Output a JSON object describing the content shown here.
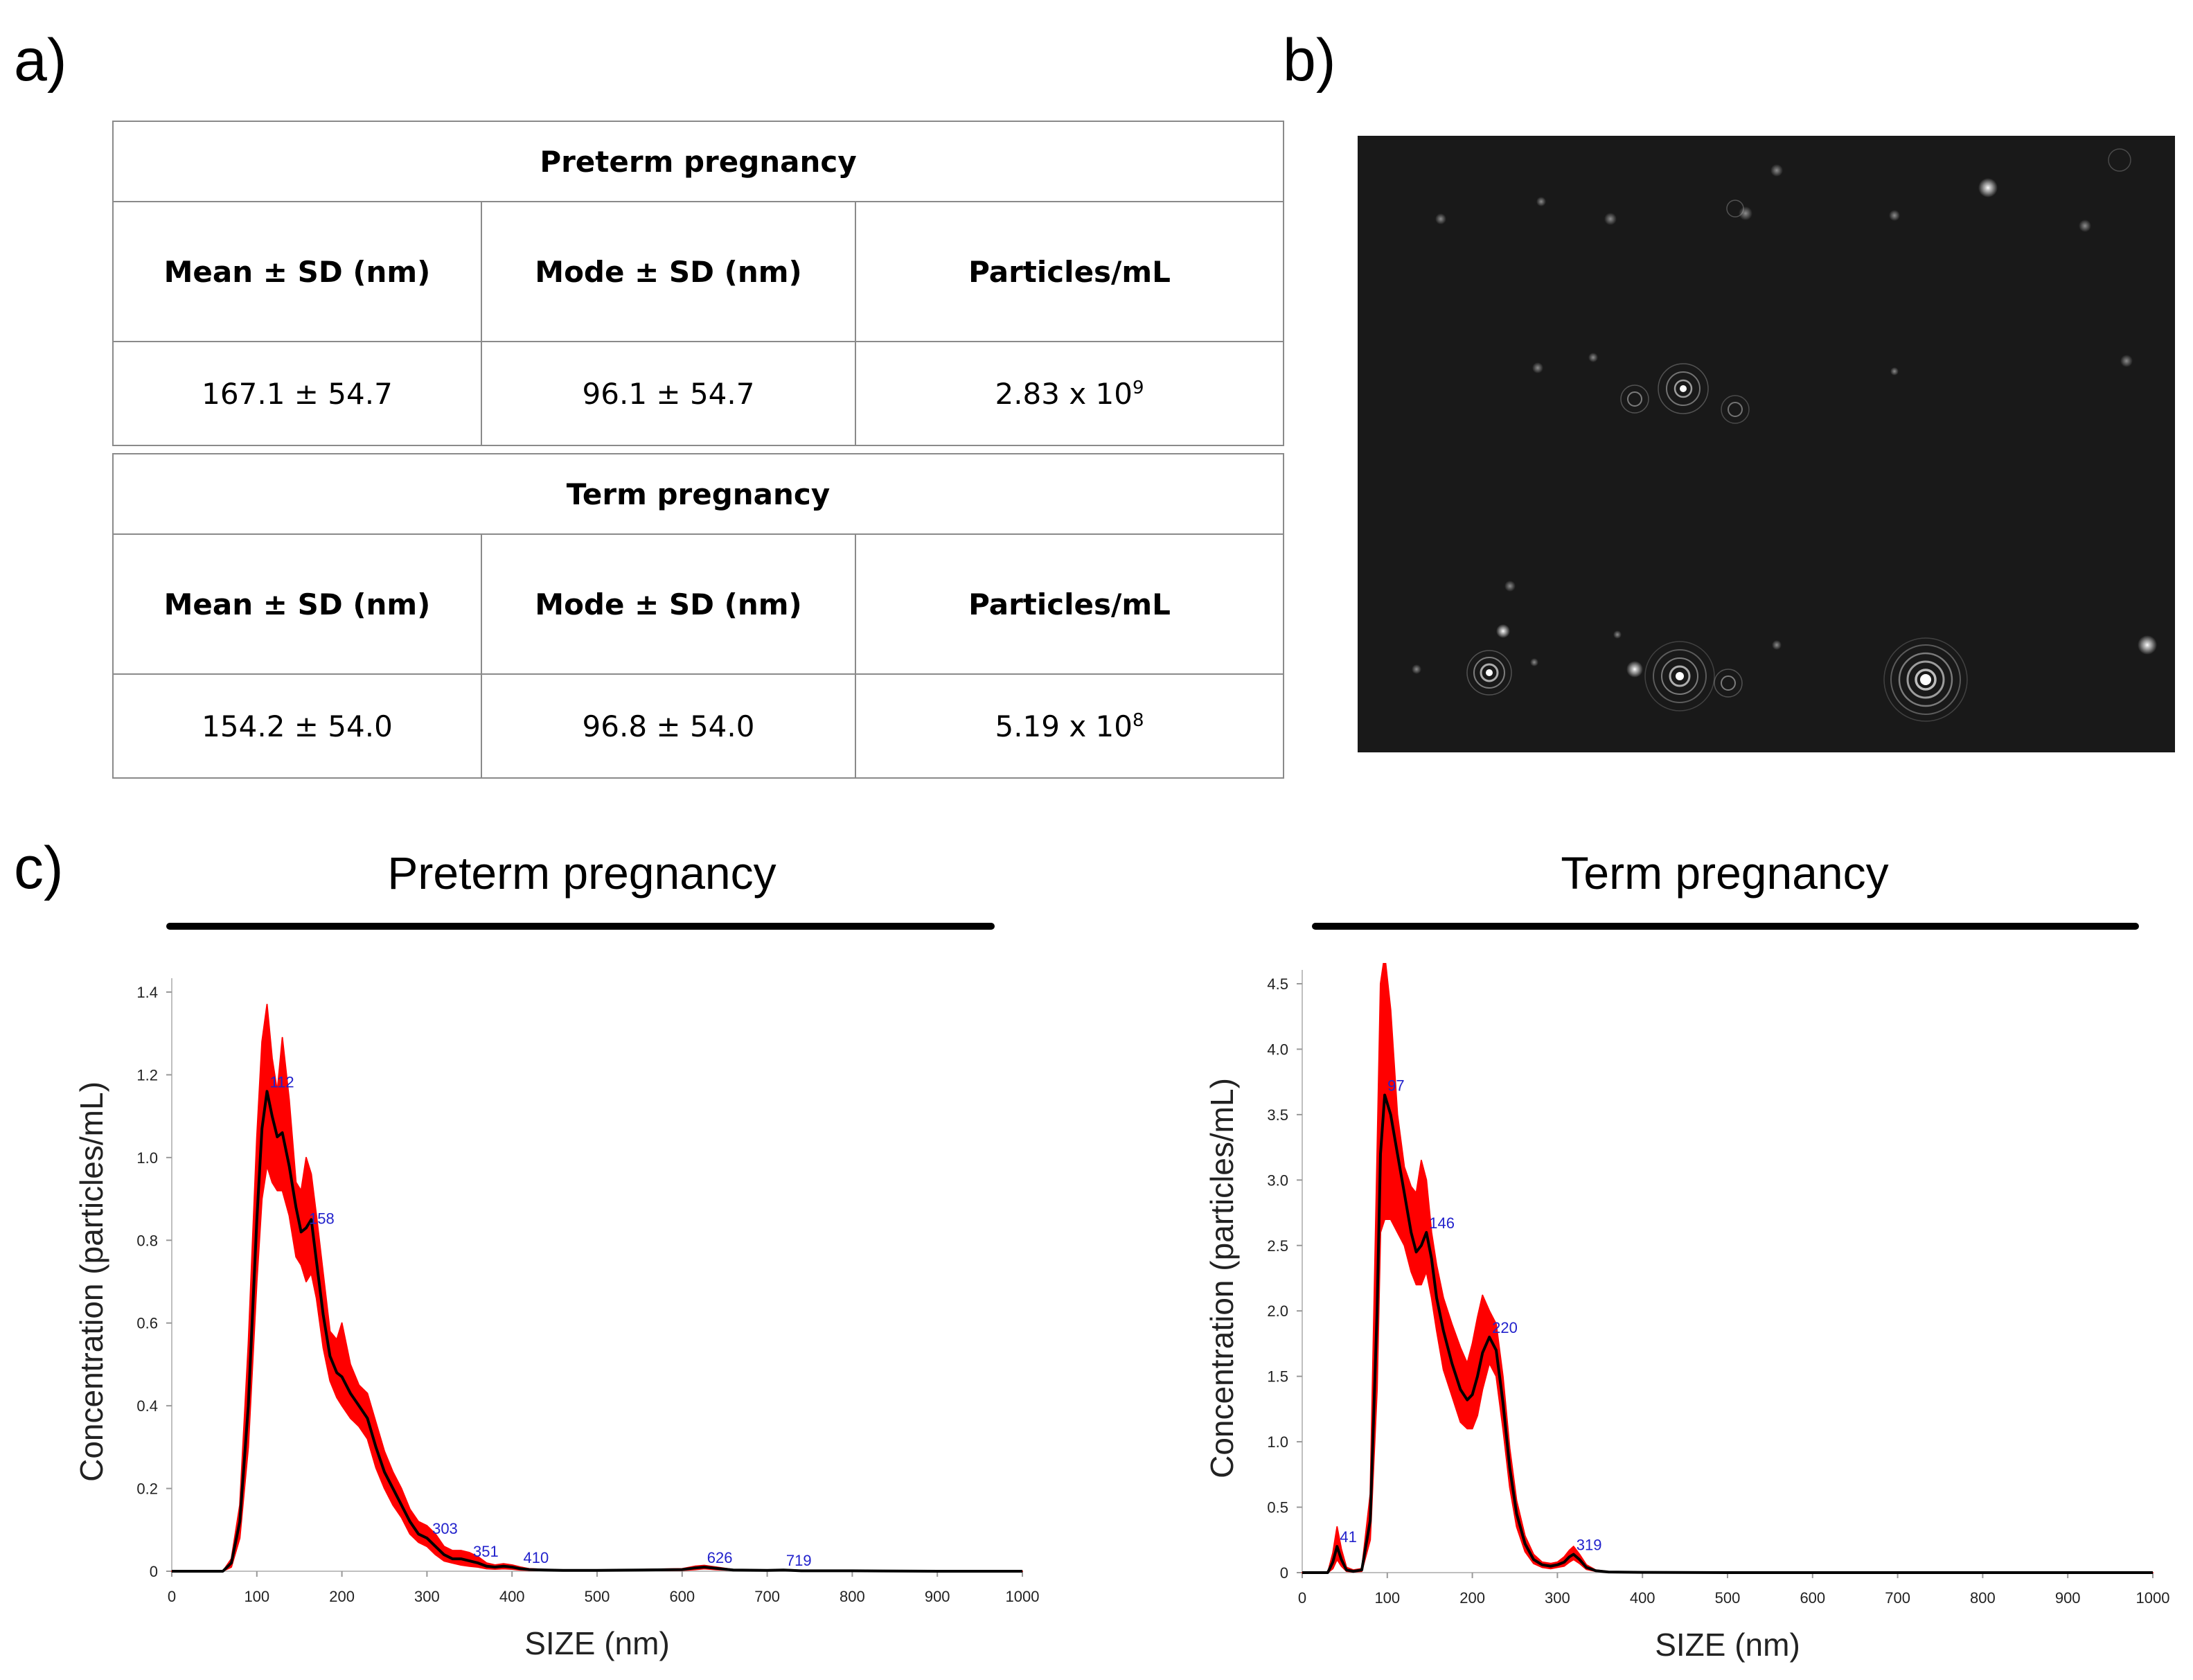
{
  "panel_labels": {
    "a": "a)",
    "b": "b)",
    "c": "c)"
  },
  "table": {
    "groups": [
      {
        "caption": "Preterm pregnancy",
        "headers": [
          "Mean ± SD (nm)",
          "Mode ± SD (nm)",
          "Particles/mL"
        ],
        "mean": "167.1 ± 54.7",
        "mode": "96.1 ± 54.7",
        "particles_base": "2.83 x 10",
        "particles_exp": "9"
      },
      {
        "caption": "Term pregnancy",
        "headers": [
          "Mean ± SD (nm)",
          "Mode ± SD (nm)",
          "Particles/mL"
        ],
        "mean": "154.2 ± 54.0",
        "mode": "96.8 ± 54.0",
        "particles_base": "5.19 x 10",
        "particles_exp": "8"
      }
    ]
  },
  "sections": {
    "left_title": "Preterm pregnancy",
    "right_title": "Term pregnancy"
  },
  "chart_data": [
    {
      "type": "area",
      "xlabel": "SIZE (nm)",
      "ylabel": "Concentration (particles/mL)",
      "xlim": [
        0,
        1000
      ],
      "ylim": [
        0,
        1.4
      ],
      "xticks": [
        0,
        100,
        200,
        300,
        400,
        500,
        600,
        700,
        800,
        900,
        1000
      ],
      "yticks": [
        0,
        0.2,
        0.4,
        0.6,
        0.8,
        1.0,
        1.2,
        1.4
      ],
      "ytick_labels": [
        "0",
        "0.2",
        "0.4",
        "0.6",
        "0.8",
        "1.0",
        "1.2",
        "1.4"
      ],
      "colors": {
        "line": "#000000",
        "band": "#ff0000",
        "peak_label": "#2222cc"
      },
      "mean_line": {
        "x": [
          0,
          60,
          70,
          80,
          90,
          100,
          106,
          112,
          118,
          124,
          130,
          138,
          146,
          152,
          158,
          164,
          170,
          178,
          186,
          194,
          200,
          210,
          220,
          230,
          240,
          250,
          260,
          270,
          280,
          290,
          300,
          310,
          320,
          330,
          340,
          350,
          360,
          370,
          380,
          390,
          400,
          410,
          420,
          440,
          460,
          500,
          550,
          600,
          615,
          626,
          640,
          660,
          700,
          719,
          740,
          800,
          900,
          1000
        ],
        "y": [
          0,
          0,
          0.02,
          0.12,
          0.4,
          0.85,
          1.07,
          1.16,
          1.1,
          1.05,
          1.06,
          0.98,
          0.88,
          0.82,
          0.83,
          0.85,
          0.75,
          0.62,
          0.52,
          0.48,
          0.47,
          0.43,
          0.4,
          0.37,
          0.3,
          0.24,
          0.2,
          0.16,
          0.12,
          0.09,
          0.08,
          0.06,
          0.04,
          0.03,
          0.03,
          0.025,
          0.02,
          0.012,
          0.01,
          0.012,
          0.01,
          0.006,
          0.004,
          0.003,
          0.002,
          0.002,
          0.003,
          0.004,
          0.008,
          0.01,
          0.007,
          0.003,
          0.002,
          0.003,
          0.001,
          0.001,
          0.0,
          0.0
        ]
      },
      "band_upper": {
        "x": [
          0,
          60,
          70,
          80,
          90,
          100,
          106,
          112,
          118,
          124,
          130,
          138,
          146,
          152,
          158,
          164,
          170,
          178,
          186,
          194,
          200,
          210,
          220,
          230,
          240,
          250,
          260,
          270,
          280,
          290,
          300,
          310,
          320,
          330,
          340,
          350,
          360,
          370,
          380,
          390,
          400,
          410,
          420,
          440,
          460,
          500,
          550,
          600,
          615,
          626,
          640,
          660,
          700,
          719,
          740,
          800,
          900,
          1000
        ],
        "y": [
          0,
          0,
          0.03,
          0.16,
          0.55,
          1.05,
          1.28,
          1.37,
          1.24,
          1.16,
          1.29,
          1.14,
          0.94,
          0.92,
          1.0,
          0.96,
          0.86,
          0.72,
          0.58,
          0.56,
          0.6,
          0.5,
          0.45,
          0.43,
          0.36,
          0.29,
          0.24,
          0.2,
          0.15,
          0.12,
          0.11,
          0.09,
          0.06,
          0.05,
          0.05,
          0.045,
          0.035,
          0.02,
          0.015,
          0.018,
          0.015,
          0.01,
          0.006,
          0.004,
          0.003,
          0.003,
          0.004,
          0.006,
          0.012,
          0.014,
          0.01,
          0.004,
          0.003,
          0.004,
          0.002,
          0.001,
          0.0,
          0.0
        ]
      },
      "band_lower": {
        "x": [
          0,
          60,
          70,
          80,
          90,
          100,
          106,
          112,
          118,
          124,
          130,
          138,
          146,
          152,
          158,
          164,
          170,
          178,
          186,
          194,
          200,
          210,
          220,
          230,
          240,
          250,
          260,
          270,
          280,
          290,
          300,
          310,
          320,
          330,
          340,
          350,
          360,
          370,
          380,
          390,
          400,
          410,
          420,
          440,
          460,
          500,
          550,
          600,
          615,
          626,
          640,
          660,
          700,
          719,
          740,
          800,
          900,
          1000
        ],
        "y": [
          0,
          0,
          0.01,
          0.08,
          0.3,
          0.7,
          0.9,
          0.98,
          0.94,
          0.92,
          0.92,
          0.86,
          0.76,
          0.74,
          0.7,
          0.72,
          0.66,
          0.54,
          0.46,
          0.42,
          0.4,
          0.37,
          0.35,
          0.32,
          0.25,
          0.2,
          0.16,
          0.13,
          0.09,
          0.07,
          0.06,
          0.04,
          0.025,
          0.02,
          0.015,
          0.012,
          0.01,
          0.006,
          0.005,
          0.006,
          0.005,
          0.003,
          0.002,
          0.002,
          0.001,
          0.001,
          0.002,
          0.002,
          0.004,
          0.006,
          0.004,
          0.002,
          0.001,
          0.002,
          0.0,
          0.0,
          0.0,
          0.0
        ]
      },
      "peak_labels": [
        {
          "text": "112",
          "x": 112,
          "y": 1.16
        },
        {
          "text": "158",
          "x": 158,
          "y": 0.83
        },
        {
          "text": "303",
          "x": 303,
          "y": 0.08
        },
        {
          "text": "351",
          "x": 351,
          "y": 0.025
        },
        {
          "text": "410",
          "x": 410,
          "y": 0.01
        },
        {
          "text": "626",
          "x": 626,
          "y": 0.01
        },
        {
          "text": "719",
          "x": 719,
          "y": 0.003
        }
      ]
    },
    {
      "type": "area",
      "xlabel": "SIZE (nm)",
      "ylabel": "Concentration (particles/mL)",
      "xlim": [
        0,
        1000
      ],
      "ylim": [
        0,
        4.5
      ],
      "xticks": [
        0,
        100,
        200,
        300,
        400,
        500,
        600,
        700,
        800,
        900,
        1000
      ],
      "yticks": [
        0,
        0.5,
        1.0,
        1.5,
        2.0,
        2.5,
        3.0,
        3.5,
        4.0,
        4.5
      ],
      "ytick_labels": [
        "0",
        "0.5",
        "1.0",
        "1.5",
        "2.0",
        "2.5",
        "3.0",
        "3.5",
        "4.0",
        "4.5"
      ],
      "colors": {
        "line": "#000000",
        "band": "#ff0000",
        "peak_label": "#2222cc"
      },
      "mean_line": {
        "x": [
          0,
          30,
          36,
          41,
          46,
          52,
          60,
          70,
          80,
          88,
          92,
          97,
          104,
          112,
          120,
          128,
          134,
          140,
          146,
          152,
          158,
          166,
          176,
          186,
          194,
          200,
          206,
          212,
          220,
          228,
          236,
          244,
          252,
          262,
          272,
          282,
          292,
          300,
          308,
          314,
          319,
          326,
          334,
          345,
          360,
          400,
          500,
          600,
          700,
          800,
          900,
          1000
        ],
        "y": [
          0,
          0,
          0.08,
          0.2,
          0.1,
          0.02,
          0.01,
          0.02,
          0.4,
          2.0,
          3.2,
          3.65,
          3.5,
          3.2,
          2.9,
          2.6,
          2.45,
          2.5,
          2.6,
          2.4,
          2.1,
          1.85,
          1.6,
          1.4,
          1.32,
          1.36,
          1.5,
          1.68,
          1.8,
          1.7,
          1.3,
          0.8,
          0.45,
          0.22,
          0.1,
          0.06,
          0.05,
          0.06,
          0.08,
          0.12,
          0.14,
          0.1,
          0.04,
          0.015,
          0.005,
          0.002,
          0.0,
          0.0,
          0.0,
          0.0,
          0.0,
          0.0
        ]
      },
      "band_upper": {
        "x": [
          0,
          30,
          36,
          41,
          46,
          52,
          60,
          70,
          80,
          88,
          92,
          97,
          104,
          112,
          120,
          128,
          134,
          140,
          146,
          152,
          158,
          166,
          176,
          186,
          194,
          200,
          206,
          212,
          220,
          228,
          236,
          244,
          252,
          262,
          272,
          282,
          292,
          300,
          308,
          314,
          319,
          326,
          334,
          345,
          360,
          400,
          500,
          600,
          700,
          800,
          900,
          1000
        ],
        "y": [
          0,
          0,
          0.15,
          0.35,
          0.18,
          0.04,
          0.02,
          0.03,
          0.6,
          3.2,
          4.5,
          4.72,
          4.3,
          3.5,
          3.1,
          2.95,
          2.9,
          3.15,
          3.0,
          2.6,
          2.35,
          2.1,
          1.9,
          1.72,
          1.6,
          1.75,
          1.95,
          2.12,
          2.0,
          1.9,
          1.5,
          0.95,
          0.55,
          0.28,
          0.14,
          0.08,
          0.07,
          0.08,
          0.12,
          0.17,
          0.2,
          0.14,
          0.06,
          0.02,
          0.008,
          0.003,
          0.0,
          0.0,
          0.0,
          0.0,
          0.0,
          0.0
        ]
      },
      "band_lower": {
        "x": [
          0,
          30,
          36,
          41,
          46,
          52,
          60,
          70,
          80,
          88,
          92,
          97,
          104,
          112,
          120,
          128,
          134,
          140,
          146,
          152,
          158,
          166,
          176,
          186,
          194,
          200,
          206,
          212,
          220,
          228,
          236,
          244,
          252,
          262,
          272,
          282,
          292,
          300,
          308,
          314,
          319,
          326,
          334,
          345,
          360,
          400,
          500,
          600,
          700,
          800,
          900,
          1000
        ],
        "y": [
          0,
          0,
          0.03,
          0.1,
          0.05,
          0.01,
          0.005,
          0.01,
          0.25,
          1.4,
          2.6,
          2.7,
          2.7,
          2.6,
          2.5,
          2.3,
          2.2,
          2.2,
          2.3,
          2.1,
          1.85,
          1.55,
          1.35,
          1.15,
          1.1,
          1.1,
          1.2,
          1.4,
          1.6,
          1.5,
          1.1,
          0.65,
          0.35,
          0.16,
          0.07,
          0.04,
          0.03,
          0.04,
          0.05,
          0.08,
          0.1,
          0.07,
          0.025,
          0.01,
          0.003,
          0.001,
          0.0,
          0.0,
          0.0,
          0.0,
          0.0,
          0.0
        ]
      },
      "peak_labels": [
        {
          "text": "41",
          "x": 41,
          "y": 0.2
        },
        {
          "text": "97",
          "x": 97,
          "y": 3.65
        },
        {
          "text": "146",
          "x": 146,
          "y": 2.6
        },
        {
          "text": "220",
          "x": 220,
          "y": 1.8
        },
        {
          "text": "319",
          "x": 319,
          "y": 0.14
        }
      ]
    }
  ]
}
